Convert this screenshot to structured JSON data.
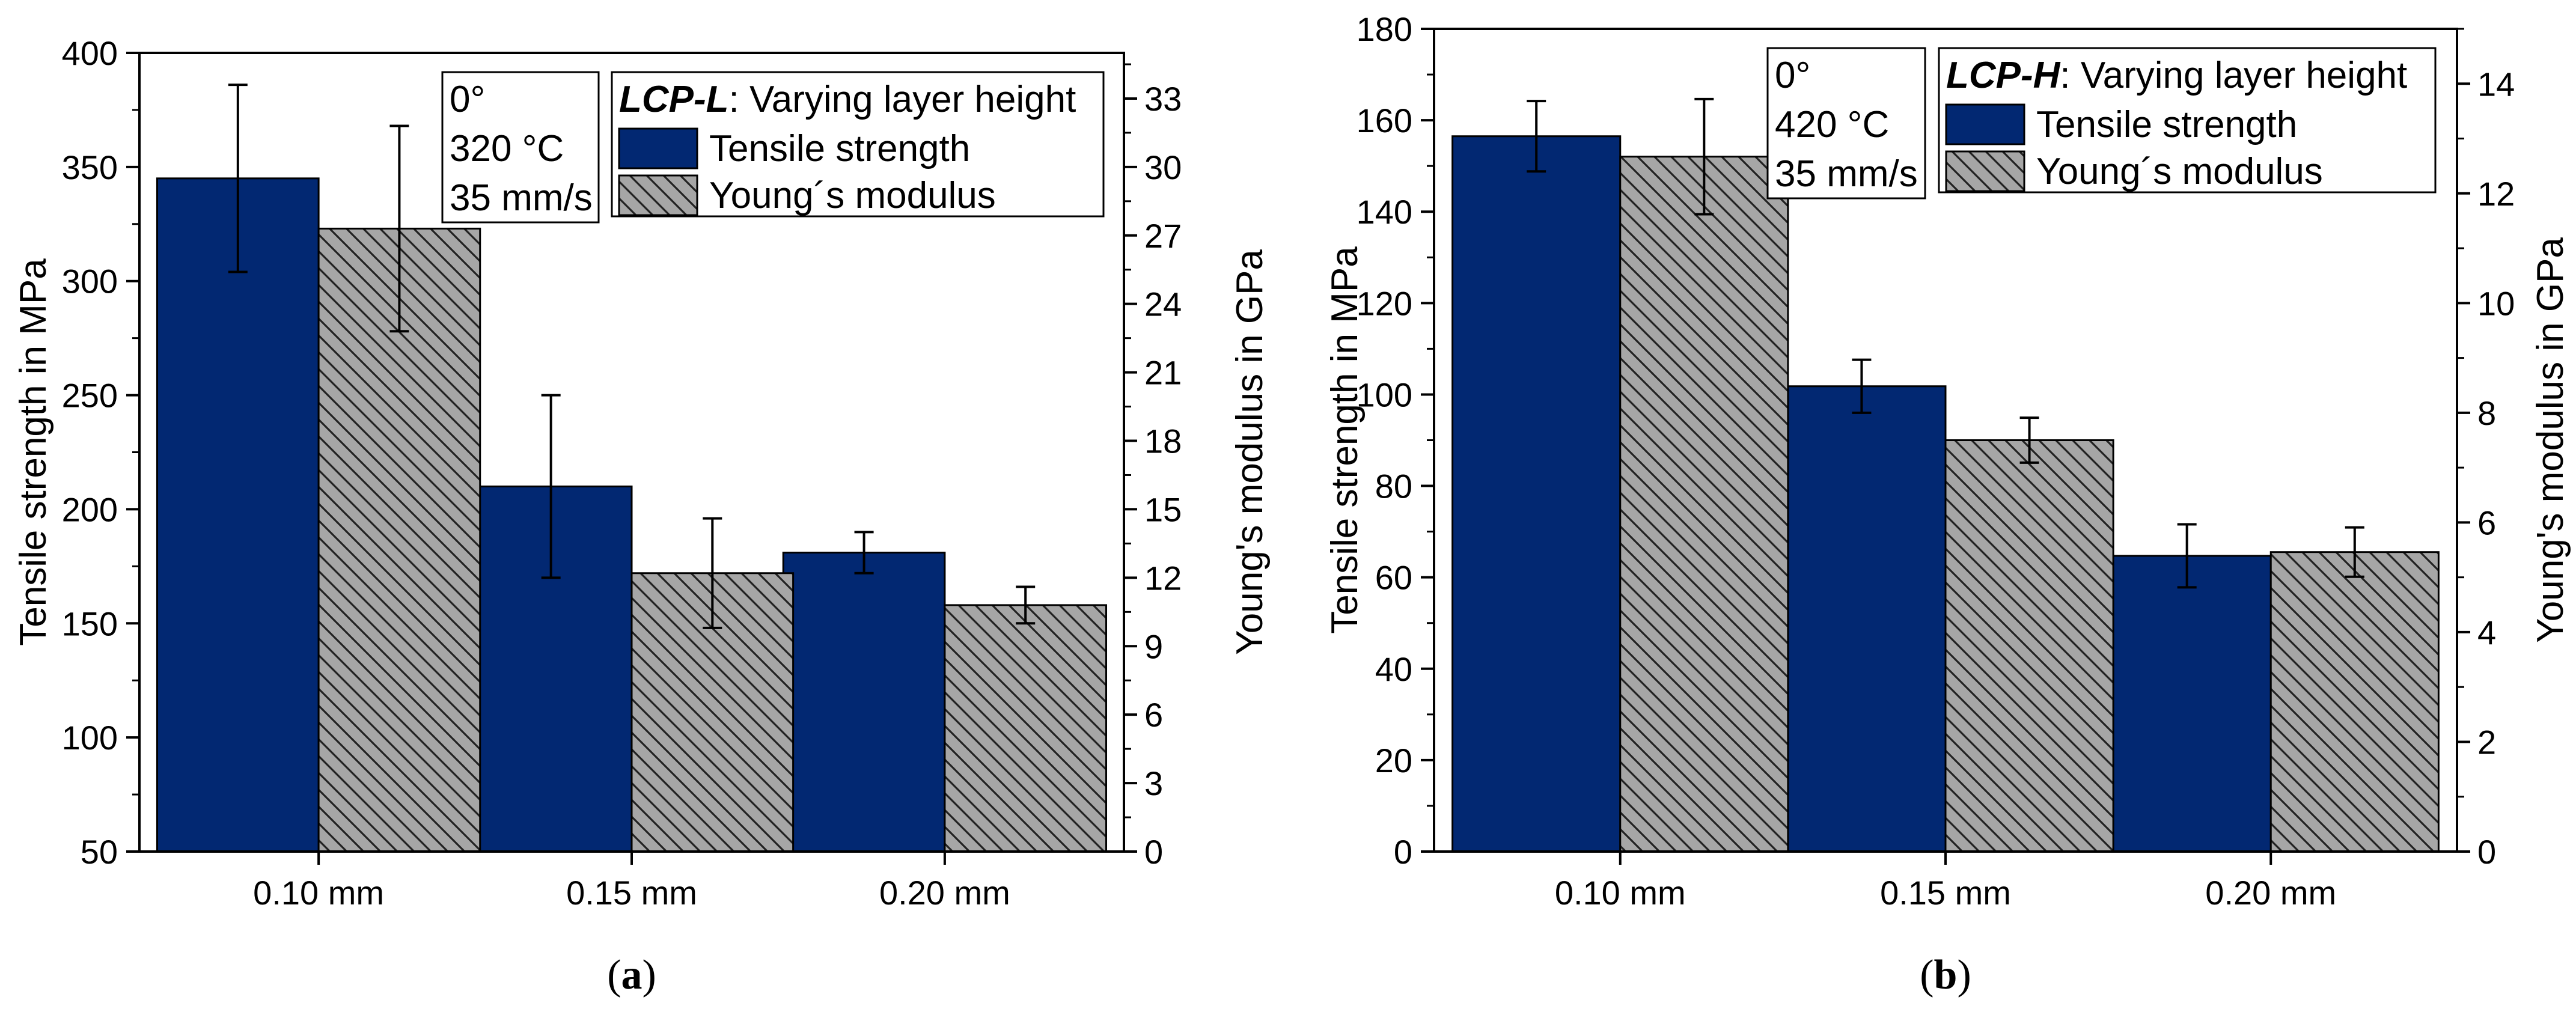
{
  "chart_data": [
    {
      "type": "bar",
      "panel": "(a)",
      "panel_letter": "a",
      "categories": [
        "0.10 mm",
        "0.15 mm",
        "0.20 mm"
      ],
      "series": [
        {
          "name": "Tensile strength",
          "axis": "left",
          "color": "#022872",
          "pattern": "solid",
          "values": [
            345,
            210,
            181
          ],
          "errors": [
            41,
            40,
            9
          ]
        },
        {
          "name": "Young´s modulus",
          "axis": "right",
          "color": "#a6a6a6",
          "pattern": "hatch",
          "values": [
            27.3,
            12.2,
            10.8
          ],
          "errors": [
            4.5,
            2.4,
            0.8
          ]
        }
      ],
      "ylabel": "Tensile strength in MPa",
      "y2label": "Young's modulus in GPa",
      "ylim": [
        50,
        400
      ],
      "yticks": [
        50,
        100,
        150,
        200,
        250,
        300,
        350,
        400
      ],
      "y2lim": [
        0,
        35
      ],
      "y2ticks": [
        0,
        3,
        6,
        9,
        12,
        15,
        18,
        21,
        24,
        27,
        30,
        33
      ],
      "conditions": [
        "0°",
        "320 °C",
        "35 mm/s"
      ],
      "legend_title_bold": "LCP-L",
      "legend_title_rest": ": Varying layer height",
      "legend_position": "top-right",
      "grid": false
    },
    {
      "type": "bar",
      "panel": "(b)",
      "panel_letter": "b",
      "categories": [
        "0.10 mm",
        "0.15 mm",
        "0.20 mm"
      ],
      "series": [
        {
          "name": "Tensile strength",
          "axis": "left",
          "color": "#022872",
          "pattern": "solid",
          "values": [
            156.5,
            101.8,
            64.7
          ],
          "errors": [
            7.7,
            5.8,
            6.9
          ]
        },
        {
          "name": "Young´s modulus",
          "axis": "right",
          "color": "#a6a6a6",
          "pattern": "hatch",
          "values": [
            12.67,
            7.5,
            5.46
          ],
          "errors": [
            1.05,
            0.41,
            0.45
          ]
        }
      ],
      "ylabel": "Tensile strength in MPa",
      "y2label": "Young's modulus in GPa",
      "ylim": [
        0,
        180
      ],
      "yticks": [
        0,
        20,
        40,
        60,
        80,
        100,
        120,
        140,
        160,
        180
      ],
      "y2lim": [
        0,
        15
      ],
      "y2ticks": [
        0,
        2,
        4,
        6,
        8,
        10,
        12,
        14
      ],
      "conditions": [
        "0°",
        "420 °C",
        "35 mm/s"
      ],
      "legend_title_bold": "LCP-H",
      "legend_title_rest": ": Varying layer height",
      "legend_position": "top-right",
      "grid": false
    }
  ]
}
